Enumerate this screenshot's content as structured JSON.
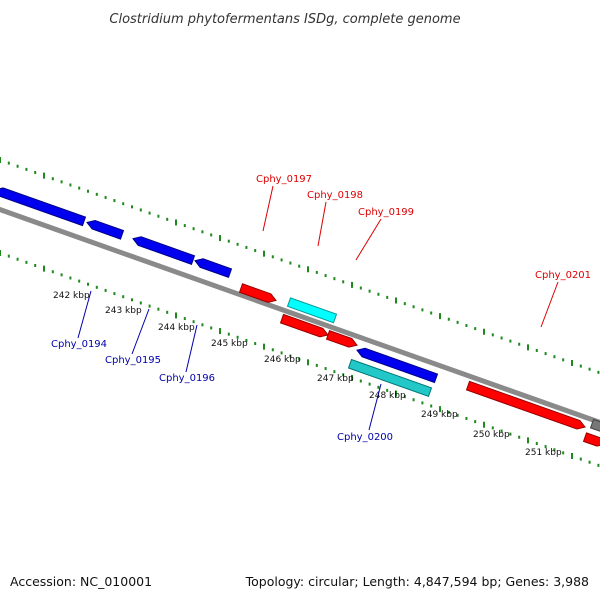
{
  "title": "Clostridium phytofermentans ISDg, complete genome",
  "footer": {
    "accession": "Accession: NC_010001",
    "summary": "Topology: circular; Length: 4,847,594 bp; Genes: 3,988"
  },
  "colors": {
    "backbone": "#8a8a8a",
    "ruler": "#1e8a1e",
    "forward_gene": "#ff0000",
    "forward_label": "#dd0000",
    "reverse_gene": "#0000ee",
    "reverse_label": "#0000aa",
    "forward_rna": "#00ffff",
    "reverse_rna": "#22c8c8"
  },
  "scale": {
    "kbp_ticks": [
      "242 kbp",
      "243 kbp",
      "244 kbp",
      "245 kbp",
      "246 kbp",
      "247 kbp",
      "248 kbp",
      "249 kbp",
      "250 kbp",
      "251 kbp"
    ]
  },
  "genes": [
    {
      "name": "Cphy_0194",
      "strand": "reverse",
      "type": "gene"
    },
    {
      "name": "Cphy_0195",
      "strand": "reverse",
      "type": "gene"
    },
    {
      "name": "Cphy_0196",
      "strand": "reverse",
      "type": "gene"
    },
    {
      "name": "Cphy_0197",
      "strand": "forward",
      "type": "gene"
    },
    {
      "name": "Cphy_0198",
      "strand": "forward",
      "type": "rna"
    },
    {
      "name": "Cphy_0199",
      "strand": "forward",
      "type": "gene"
    },
    {
      "name": "Cphy_0200",
      "strand": "reverse",
      "type": "rna"
    },
    {
      "name": "Cphy_0201",
      "strand": "forward",
      "type": "gene"
    }
  ]
}
